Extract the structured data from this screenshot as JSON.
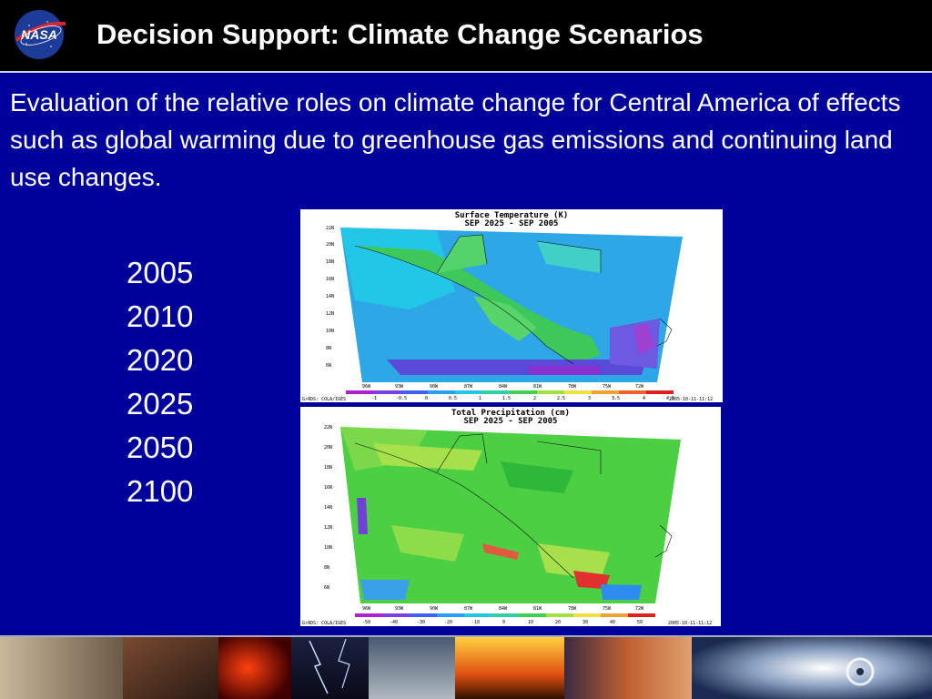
{
  "slide": {
    "title": "Decision Support: Climate Change Scenarios",
    "description": "Evaluation of the relative roles on climate change for Central America of effects such as global warming due to greenhouse gas emissions and continuing land use changes.",
    "years": [
      "2005",
      "2010",
      "2020",
      "2025",
      "2050",
      "2100"
    ]
  },
  "logo": {
    "icon": "nasa-meatball-logo",
    "text": "NASA"
  },
  "maps": [
    {
      "title": "Surface Temperature (K)",
      "subtitle": "SEP 2025 - SEP 2005",
      "lat_labels": [
        "22N",
        "20N",
        "18N",
        "16N",
        "14N",
        "12N",
        "10N",
        "8N",
        "6N"
      ],
      "lon_labels": [
        "96W",
        "93W",
        "90W",
        "87W",
        "84W",
        "81W",
        "78W",
        "75W",
        "72W"
      ],
      "colorbar_labels": [
        "-1",
        "-0.5",
        "0",
        "0.5",
        "1",
        "1.5",
        "2",
        "2.5",
        "3",
        "3.5",
        "4",
        "4.5"
      ],
      "source": "GrADS: COLA/IGES",
      "timestamp": "2005-10-11-11:12"
    },
    {
      "title": "Total Precipitation (cm)",
      "subtitle": "SEP 2025 - SEP 2005",
      "lat_labels": [
        "22N",
        "20N",
        "18N",
        "16N",
        "14N",
        "12N",
        "10N",
        "8N",
        "6N"
      ],
      "lon_labels": [
        "96W",
        "93W",
        "90W",
        "87W",
        "84W",
        "81W",
        "78W",
        "75W",
        "72W"
      ],
      "colorbar_labels": [
        "-50",
        "-40",
        "-30",
        "-20",
        "-10",
        "0",
        "10",
        "20",
        "30",
        "40",
        "50"
      ],
      "source": "GrADS: COLA/IGES",
      "timestamp": "2005-10-11-11:12"
    }
  ],
  "colors": {
    "background": "#00009b",
    "header": "#000000",
    "text": "#ffffff"
  },
  "footer": {
    "images": [
      "classroom-photo",
      "students-photo",
      "wildfire-photo",
      "lightning-photo",
      "clouds-photo",
      "forest-fire-photo",
      "canyon-photo",
      "hurricane-satellite-photo"
    ]
  }
}
